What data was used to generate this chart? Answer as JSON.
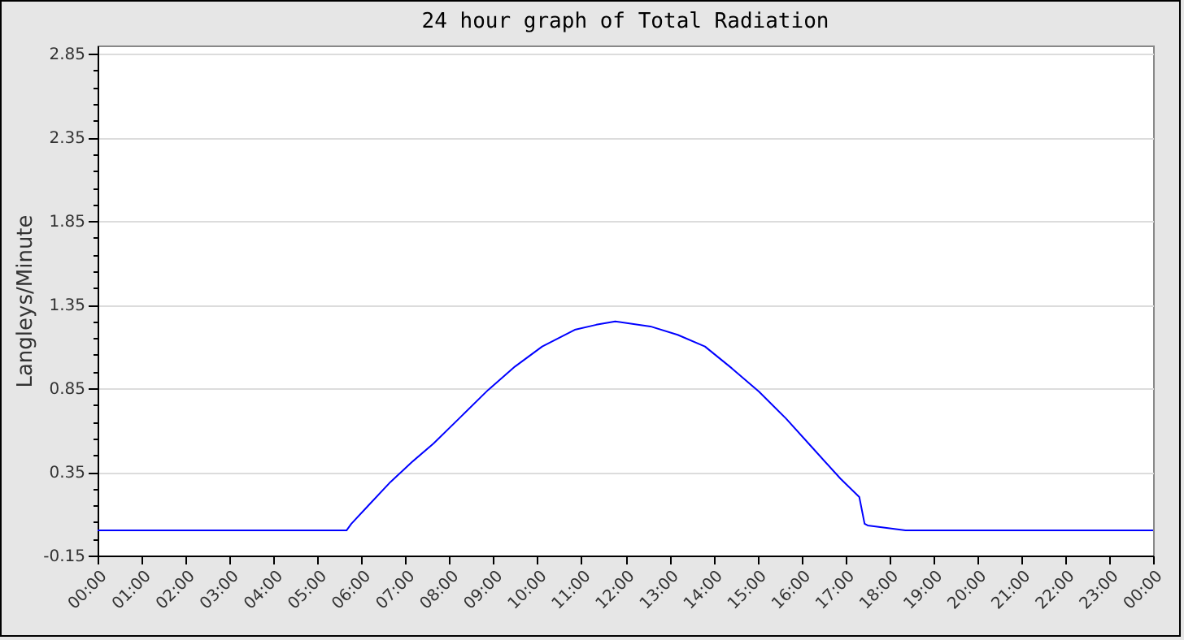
{
  "chart_data": {
    "type": "line",
    "title": "24 hour graph of Total Radiation",
    "ylabel": "Langleys/Minute",
    "x": [
      0,
      5.66,
      5.77,
      6.16,
      6.66,
      7.15,
      7.64,
      8.26,
      8.88,
      9.49,
      10.11,
      10.48,
      10.85,
      11.34,
      11.77,
      12.57,
      13.19,
      13.81,
      14.42,
      15.04,
      15.65,
      16.27,
      16.89,
      17.32,
      17.44,
      17.51,
      18.37,
      24
    ],
    "series": [
      {
        "color": "#0000ff",
        "values": [
          0,
          0,
          0.04,
          0.15,
          0.29,
          0.41,
          0.52,
          0.68,
          0.84,
          0.98,
          1.1,
          1.15,
          1.2,
          1.23,
          1.25,
          1.22,
          1.17,
          1.1,
          0.97,
          0.83,
          0.67,
          0.49,
          0.31,
          0.2,
          0.04,
          0.03,
          0,
          0
        ]
      }
    ],
    "xlim": [
      0,
      24
    ],
    "xticks": [
      {
        "value": 0,
        "label": "00:00"
      },
      {
        "value": 1,
        "label": "01:00"
      },
      {
        "value": 2,
        "label": "02:00"
      },
      {
        "value": 3,
        "label": "03:00"
      },
      {
        "value": 4,
        "label": "04:00"
      },
      {
        "value": 5,
        "label": "05:00"
      },
      {
        "value": 6,
        "label": "06:00"
      },
      {
        "value": 7,
        "label": "07:00"
      },
      {
        "value": 8,
        "label": "08:00"
      },
      {
        "value": 9,
        "label": "09:00"
      },
      {
        "value": 10,
        "label": "10:00"
      },
      {
        "value": 11,
        "label": "11:00"
      },
      {
        "value": 12,
        "label": "12:00"
      },
      {
        "value": 13,
        "label": "13:00"
      },
      {
        "value": 14,
        "label": "14:00"
      },
      {
        "value": 15,
        "label": "15:00"
      },
      {
        "value": 16,
        "label": "16:00"
      },
      {
        "value": 17,
        "label": "17:00"
      },
      {
        "value": 18,
        "label": "18:00"
      },
      {
        "value": 19,
        "label": "19:00"
      },
      {
        "value": 20,
        "label": "20:00"
      },
      {
        "value": 21,
        "label": "21:00"
      },
      {
        "value": 22,
        "label": "22:00"
      },
      {
        "value": 23,
        "label": "23:00"
      },
      {
        "value": 24,
        "label": "00:00"
      }
    ],
    "ylim": [
      -0.15,
      2.9
    ],
    "yticks": [
      -0.15,
      {
        "value": -0.05,
        "label": null
      },
      {
        "value": 0.05,
        "label": null
      },
      {
        "value": 0.15,
        "label": null
      },
      {
        "value": 0.25,
        "label": null
      },
      0.35,
      {
        "value": 0.45,
        "label": null
      },
      {
        "value": 0.55,
        "label": null
      },
      {
        "value": 0.65,
        "label": null
      },
      {
        "value": 0.75,
        "label": null
      },
      0.85,
      {
        "value": 0.95,
        "label": null
      },
      {
        "value": 1.05,
        "label": null
      },
      {
        "value": 1.15,
        "label": null
      },
      {
        "value": 1.25,
        "label": null
      },
      1.35,
      {
        "value": 1.45,
        "label": null
      },
      {
        "value": 1.55,
        "label": null
      },
      {
        "value": 1.65,
        "label": null
      },
      {
        "value": 1.75,
        "label": null
      },
      1.85,
      {
        "value": 1.95,
        "label": null
      },
      {
        "value": 2.05,
        "label": null
      },
      {
        "value": 2.15,
        "label": null
      },
      {
        "value": 2.25,
        "label": null
      },
      2.35,
      {
        "value": 2.45,
        "label": null
      },
      {
        "value": 2.55,
        "label": null
      },
      {
        "value": 2.65,
        "label": null
      },
      {
        "value": 2.75,
        "label": null
      },
      2.85
    ],
    "grid": "y",
    "marker": "none",
    "line_style": "solid"
  }
}
